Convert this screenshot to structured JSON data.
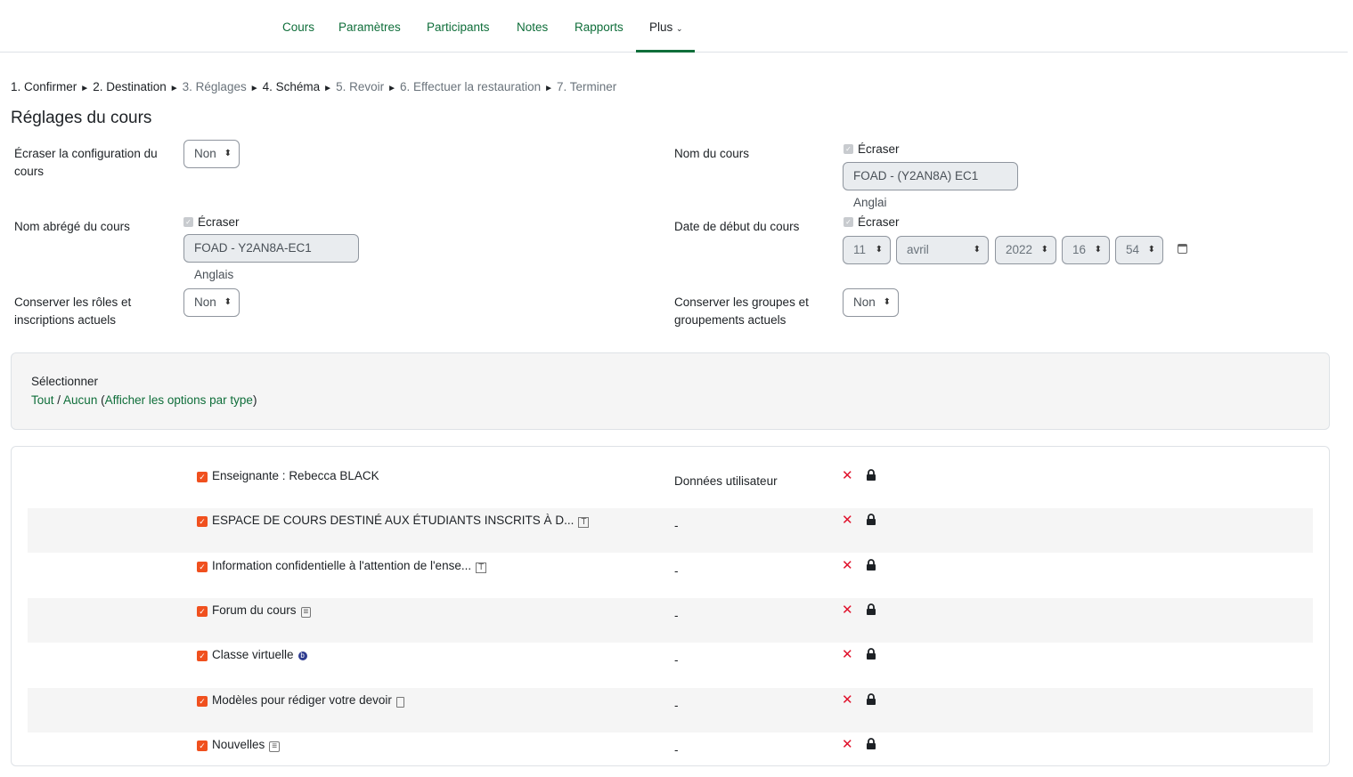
{
  "nav": {
    "items": [
      "Cours",
      "Paramètres",
      "Participants",
      "Notes",
      "Rapports",
      "Plus"
    ],
    "active": "Plus"
  },
  "breadcrumb": [
    {
      "label": "1. Confirmer",
      "current": true
    },
    {
      "label": "2. Destination",
      "current": true
    },
    {
      "label": "3. Réglages",
      "current": false
    },
    {
      "label": "4. Schéma",
      "current": true
    },
    {
      "label": "5. Revoir",
      "current": false
    },
    {
      "label": "6. Effectuer la restauration",
      "current": false
    },
    {
      "label": "7. Terminer",
      "current": false
    }
  ],
  "separator": "►",
  "title": "Réglages du cours",
  "settings": {
    "overwrite_conf_label": "Écraser la configuration du cours",
    "overwrite_conf_value": "Non",
    "course_name_label": "Nom du cours",
    "overwrite": "Écraser",
    "course_name_value": "FOAD - (Y2AN8A) EC1 Anglai",
    "short_name_label": "Nom abrégé du cours",
    "short_name_value": "FOAD - Y2AN8A-EC1 Anglais",
    "start_date_label": "Date de début du cours",
    "day": "11",
    "month": "avril",
    "year": "2022",
    "hour": "16",
    "minute": "54",
    "keep_roles_label": "Conserver les rôles et inscriptions actuels",
    "keep_roles_value": "Non",
    "keep_groups_label": "Conserver les groupes et groupements actuels",
    "keep_groups_value": "Non"
  },
  "select": {
    "title": "Sélectionner",
    "all": "Tout",
    "sep": " / ",
    "none": "Aucun",
    "open": " (",
    "by_type": "Afficher les options par type",
    "close": ")"
  },
  "rows": [
    {
      "label": "Enseignante : Rebecca BLACK",
      "col2": "Données utilisateur",
      "icon": ""
    },
    {
      "label": "ESPACE DE COURS DESTINÉ AUX ÉTUDIANTS INSCRITS À D...",
      "col2": "-",
      "icon": "label-icon"
    },
    {
      "label": "Information confidentielle à l'attention de l'ense...",
      "col2": "-",
      "icon": "label-icon"
    },
    {
      "label": "Forum du cours",
      "col2": "-",
      "icon": "forum-icon"
    },
    {
      "label": "Classe virtuelle",
      "col2": "-",
      "icon": "bigbluebutton-icon"
    },
    {
      "label": "Modèles pour rédiger votre devoir",
      "col2": "-",
      "icon": "folder-icon"
    },
    {
      "label": "Nouvelles",
      "col2": "-",
      "icon": "forum-icon"
    }
  ],
  "colors": {
    "accent": "#0f6e3a",
    "checkbox": "#f0501e",
    "remove": "#e0112b"
  }
}
